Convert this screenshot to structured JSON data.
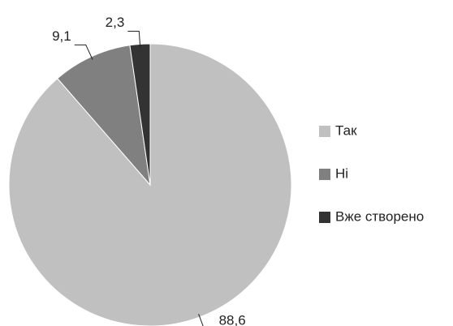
{
  "chart_data": {
    "type": "pie",
    "categories": [
      "Так",
      "Ні",
      "Вже створено"
    ],
    "values": [
      88.6,
      9.1,
      2.3
    ],
    "value_labels": [
      "88,6",
      "9,1",
      "2,3"
    ],
    "colors": [
      "#c0c0c0",
      "#808080",
      "#333333"
    ],
    "legend": "right"
  }
}
